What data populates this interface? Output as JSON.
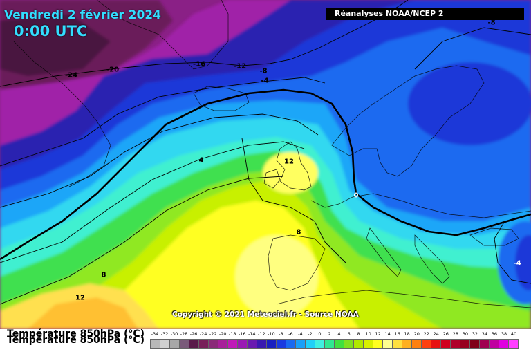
{
  "header": {
    "title": "Vendredi 2 février 2024",
    "time": "0:00 UTC",
    "source": "Réanalyses NOAA/NCEP 2"
  },
  "map": {
    "copyright": "Copyright © 2021 Meteociel.fr - Source NOAA",
    "isotherm_labels": [
      {
        "text": "-24"
      },
      {
        "text": "-20"
      },
      {
        "text": "-16"
      },
      {
        "text": "-12"
      },
      {
        "text": "-8"
      },
      {
        "text": "-4"
      },
      {
        "text": "-8"
      },
      {
        "text": "4"
      },
      {
        "text": "12"
      },
      {
        "text": "0"
      },
      {
        "text": "8"
      },
      {
        "text": "8"
      },
      {
        "text": "12"
      },
      {
        "text": "-4"
      }
    ]
  },
  "legend": {
    "variable_title": "Température 850hPa (°C)",
    "ticks": [
      "-34",
      "-32",
      "-30",
      "-28",
      "-26",
      "-24",
      "-22",
      "-20",
      "-18",
      "-16",
      "-14",
      "-12",
      "-10",
      "-8",
      "-6",
      "-4",
      "-2",
      "0",
      "2",
      "4",
      "6",
      "8",
      "10",
      "12",
      "14",
      "16",
      "18",
      "20",
      "22",
      "24",
      "26",
      "28",
      "30",
      "32",
      "34",
      "36",
      "38",
      "40"
    ],
    "colors": [
      "#b8b8b8",
      "#d0d0d0",
      "#a8a8a8",
      "#7a5a7a",
      "#5a1a4a",
      "#78205a",
      "#8a2a78",
      "#a8209a",
      "#c01ab8",
      "#9a1ab4",
      "#6a1ab0",
      "#3a1ab0",
      "#1a20c0",
      "#1a3ae0",
      "#1a6af0",
      "#1aa0f8",
      "#20d0f8",
      "#40f0e0",
      "#30e890",
      "#40e040",
      "#80e020",
      "#b0e800",
      "#d8f000",
      "#ffff20",
      "#ffff90",
      "#ffe040",
      "#ffb020",
      "#ff8010",
      "#ff4010",
      "#e81010",
      "#d00020",
      "#b0002a",
      "#980020",
      "#800018",
      "#a00050",
      "#c000a0",
      "#e000e0",
      "#ff40ff"
    ]
  }
}
